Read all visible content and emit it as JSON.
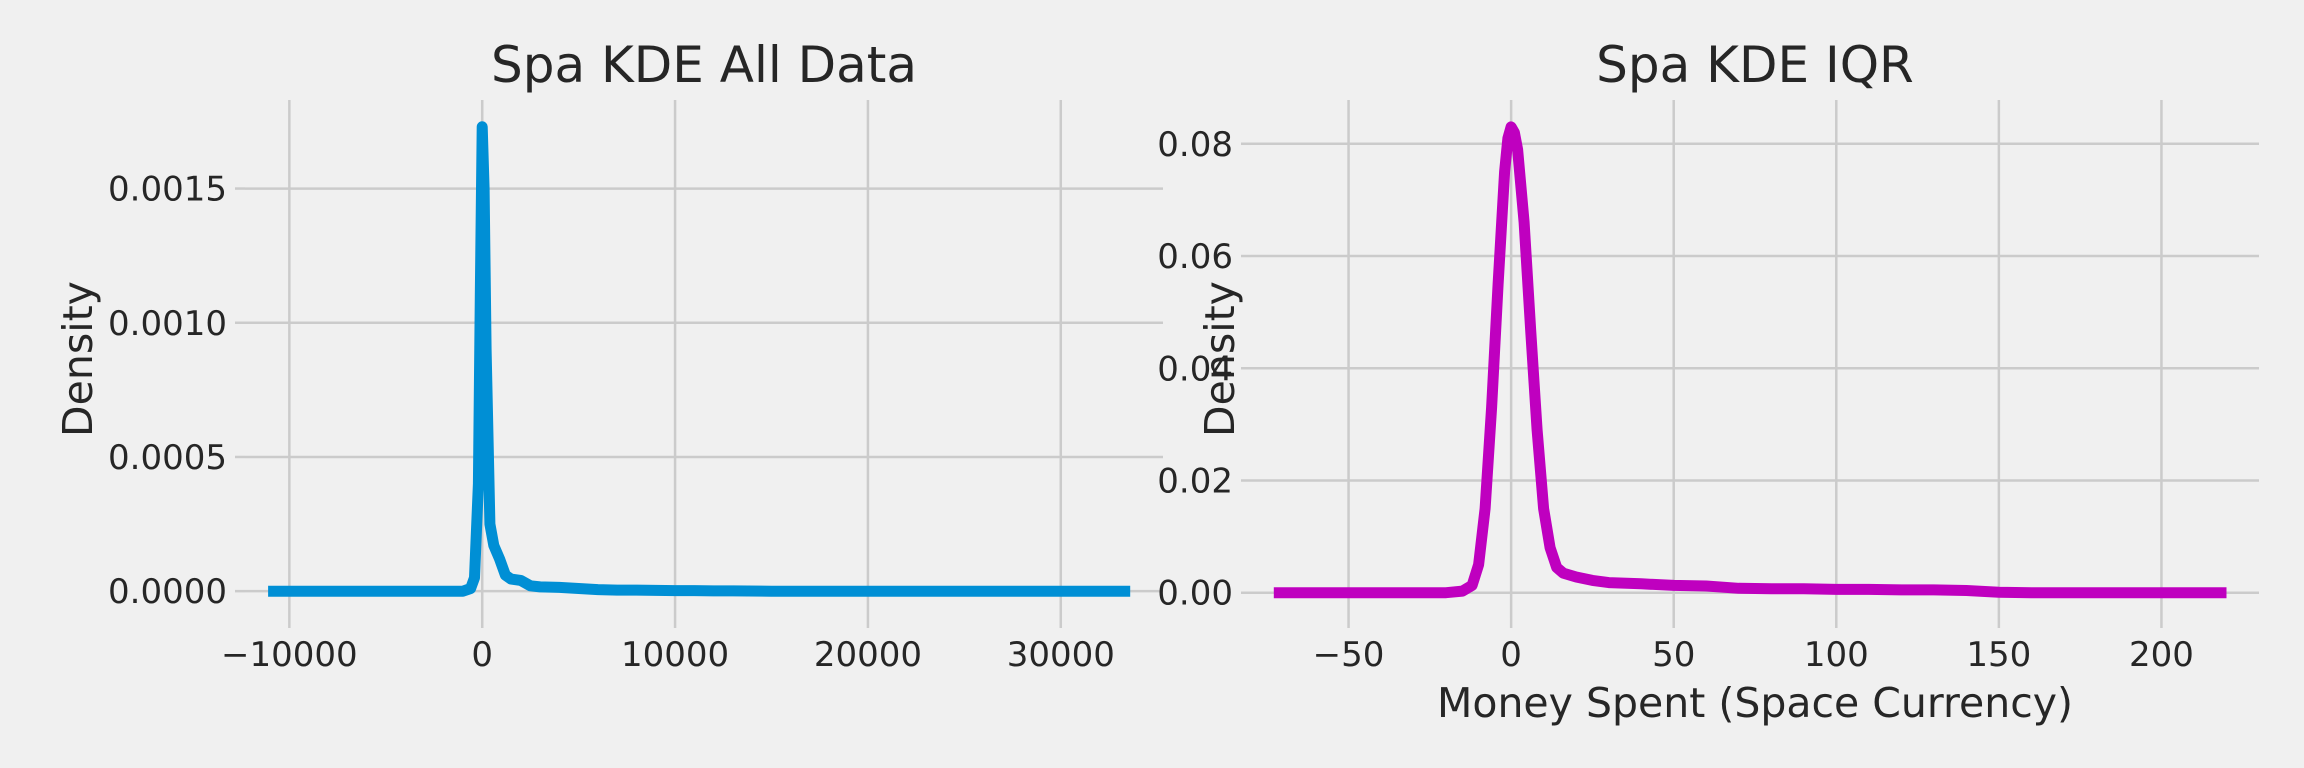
{
  "chart_data": [
    {
      "type": "line",
      "title": "Spa KDE All Data",
      "xlabel": "",
      "ylabel": "Density",
      "xlim": [
        -12300,
        35300
      ],
      "ylim": [
        -0.0001,
        0.00183
      ],
      "xticks": [
        -10000,
        0,
        10000,
        20000,
        30000
      ],
      "xtick_labels": [
        "−10000",
        "0",
        "10000",
        "20000",
        "30000"
      ],
      "yticks": [
        0.0,
        0.0005,
        0.001,
        0.0015
      ],
      "ytick_labels": [
        "0.0000",
        "0.0005",
        "0.0010",
        "0.0015"
      ],
      "grid": true,
      "series": [
        {
          "color": "#008fd5",
          "x": [
            -11100,
            -3000,
            -1000,
            -600,
            -400,
            -200,
            -100,
            0,
            100,
            200,
            400,
            600,
            900,
            1200,
            1500,
            2000,
            2500,
            3000,
            4000,
            5000,
            6000,
            7000,
            8000,
            9000,
            10000,
            11000,
            12000,
            13000,
            15000,
            20000,
            25000,
            30000,
            33600
          ],
          "y": [
            0.0,
            0.0,
            0.0,
            1e-05,
            5e-05,
            0.0004,
            0.0011,
            0.00173,
            0.0015,
            0.0009,
            0.00025,
            0.00017,
            0.00012,
            6e-05,
            4.5e-05,
            4e-05,
            2e-05,
            1.6e-05,
            1.4e-05,
            1e-05,
            6e-06,
            4e-06,
            4e-06,
            3e-06,
            2e-06,
            2e-06,
            1e-06,
            1e-06,
            0.0,
            0.0,
            0.0,
            0.0,
            0.0
          ]
        }
      ]
    },
    {
      "type": "line",
      "title": "Spa KDE IQR",
      "xlabel": "Money Spent (Space Currency)",
      "ylabel": "Density",
      "xlim": [
        -80,
        230
      ],
      "ylim": [
        -0.0045,
        0.0878
      ],
      "xticks": [
        -50,
        0,
        50,
        100,
        150,
        200
      ],
      "xtick_labels": [
        "−50",
        "0",
        "50",
        "100",
        "150",
        "200"
      ],
      "yticks": [
        0.0,
        0.02,
        0.04,
        0.06,
        0.08
      ],
      "ytick_labels": [
        "0.00",
        "0.02",
        "0.04",
        "0.06",
        "0.08"
      ],
      "grid": true,
      "series": [
        {
          "color": "#bf00bf",
          "x": [
            -73,
            -20,
            -15,
            -12,
            -10,
            -8,
            -6,
            -4,
            -2,
            -1,
            0,
            1,
            2,
            4,
            6,
            8,
            10,
            12,
            14,
            16,
            20,
            25,
            30,
            40,
            50,
            60,
            70,
            80,
            90,
            100,
            110,
            120,
            130,
            140,
            150,
            160,
            180,
            200,
            220
          ],
          "y": [
            0.0,
            0.0,
            0.0003,
            0.0013,
            0.005,
            0.015,
            0.033,
            0.055,
            0.075,
            0.081,
            0.083,
            0.082,
            0.079,
            0.066,
            0.047,
            0.029,
            0.015,
            0.008,
            0.0045,
            0.0035,
            0.0028,
            0.0022,
            0.0018,
            0.0016,
            0.0013,
            0.0012,
            0.0008,
            0.0007,
            0.0007,
            0.0006,
            0.0006,
            0.0005,
            0.0005,
            0.0004,
            0.0001,
            0.0,
            0.0,
            0.0,
            0.0
          ]
        }
      ]
    }
  ]
}
